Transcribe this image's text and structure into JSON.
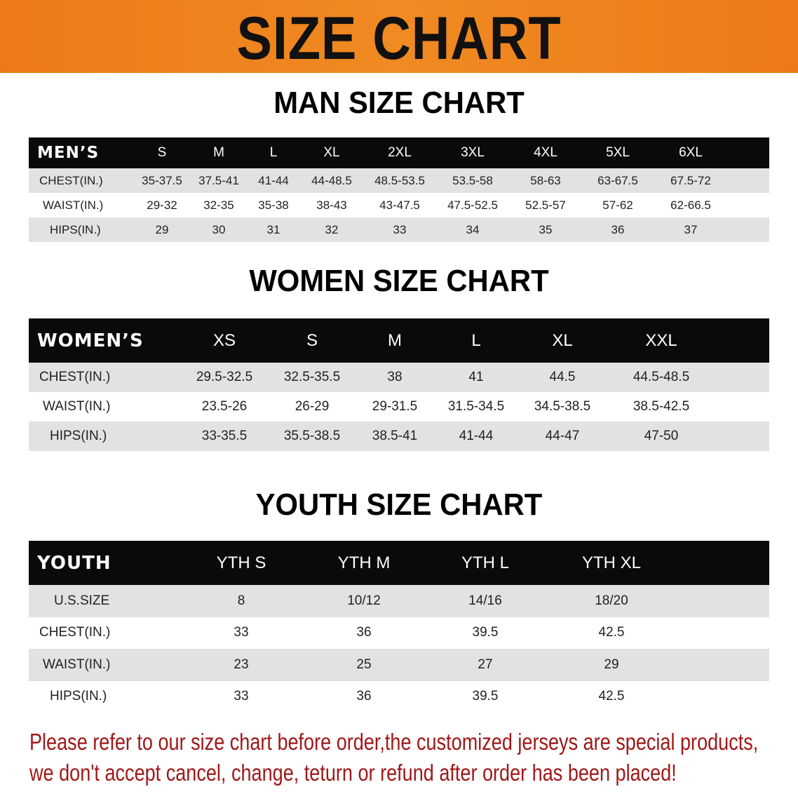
{
  "banner_title": "SIZE CHART",
  "men": {
    "title": "MAN SIZE CHART",
    "header_label": "MEN’S",
    "sizes": [
      "S",
      "M",
      "L",
      "XL",
      "2XL",
      "3XL",
      "4XL",
      "5XL",
      "6XL"
    ],
    "rows": [
      {
        "label": "CHEST(IN.)",
        "values": [
          "35-37.5",
          "37.5-41",
          "41-44",
          "44-48.5",
          "48.5-53.5",
          "53.5-58",
          "58-63",
          "63-67.5",
          "67.5-72"
        ]
      },
      {
        "label": "WAIST(IN.)",
        "values": [
          "29-32",
          "32-35",
          "35-38",
          "38-43",
          "43-47.5",
          "47.5-52.5",
          "52.5-57",
          "57-62",
          "62-66.5"
        ]
      },
      {
        "label": "HIPS(IN.)",
        "values": [
          "29",
          "30",
          "31",
          "32",
          "33",
          "34",
          "35",
          "36",
          "37"
        ]
      }
    ]
  },
  "women": {
    "title": "WOMEN SIZE CHART",
    "header_label": "WOMEN’S",
    "sizes": [
      "XS",
      "S",
      "M",
      "L",
      "XL",
      "XXL"
    ],
    "rows": [
      {
        "label": "CHEST(IN.)",
        "values": [
          "29.5-32.5",
          "32.5-35.5",
          "38",
          "41",
          "44.5",
          "44.5-48.5"
        ]
      },
      {
        "label": "WAIST(IN.)",
        "values": [
          "23.5-26",
          "26-29",
          "29-31.5",
          "31.5-34.5",
          "34.5-38.5",
          "38.5-42.5"
        ]
      },
      {
        "label": "HIPS(IN.)",
        "values": [
          "33-35.5",
          "35.5-38.5",
          "38.5-41",
          "41-44",
          "44-47",
          "47-50"
        ]
      }
    ]
  },
  "youth": {
    "title": "YOUTH SIZE CHART",
    "header_label": "YOUTH",
    "sizes": [
      "YTH S",
      "YTH M",
      "YTH L",
      "YTH XL"
    ],
    "rows": [
      {
        "label": "U.S.SIZE",
        "values": [
          "8",
          "10/12",
          "14/16",
          "18/20"
        ]
      },
      {
        "label": "CHEST(IN.)",
        "values": [
          "33",
          "36",
          "39.5",
          "42.5"
        ]
      },
      {
        "label": "WAIST(IN.)",
        "values": [
          "23",
          "25",
          "27",
          "29"
        ]
      },
      {
        "label": "HIPS(IN.)",
        "values": [
          "33",
          "36",
          "39.5",
          "42.5"
        ]
      }
    ]
  },
  "notice": [
    "Please refer to our size chart before order,the customized jerseys are special products,",
    "we don't accept cancel, change, teturn or refund after order has been placed!"
  ],
  "colors": {
    "banner": "#ee7f1b",
    "header": "#0a0a0a",
    "row_alt": "#e2e2e2",
    "notice": "#a01818"
  }
}
